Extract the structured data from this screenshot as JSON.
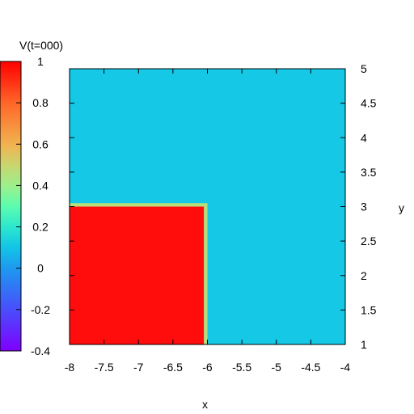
{
  "chart_data": {
    "type": "heatmap",
    "title": "",
    "xlabel": "x",
    "ylabel": "y",
    "xlim": [
      -8,
      -4
    ],
    "ylim": [
      1,
      5
    ],
    "x_ticks": [
      "-8",
      "-7.5",
      "-7",
      "-6.5",
      "-6",
      "-5.5",
      "-5",
      "-4.5",
      "-4"
    ],
    "y_ticks": [
      "1",
      "1.5",
      "2",
      "2.5",
      "3",
      "3.5",
      "4",
      "4.5",
      "5"
    ],
    "colorbar": {
      "label": "V(t=000)",
      "range": [
        -0.4,
        1
      ],
      "ticks": [
        "1",
        "0.8",
        "0.6",
        "0.4",
        "0.2",
        "0",
        "-0.2",
        "-0.4"
      ],
      "palette": "rainbow"
    },
    "field": {
      "background_value": 0.02,
      "regions": [
        {
          "shape": "rectangle",
          "x_range": [
            -8,
            -6.05
          ],
          "y_range": [
            1,
            3.0
          ],
          "value": 1.0
        },
        {
          "shape": "border",
          "x_range": [
            -6.05,
            -6.0
          ],
          "y_range": [
            1,
            3.05
          ],
          "value": 0.5
        }
      ]
    },
    "grid": false,
    "legend_placement": "left"
  },
  "colors": {
    "background_field": "#14c8e6",
    "hot_region": "#ff0d0d",
    "edge": "#b8e07a"
  }
}
